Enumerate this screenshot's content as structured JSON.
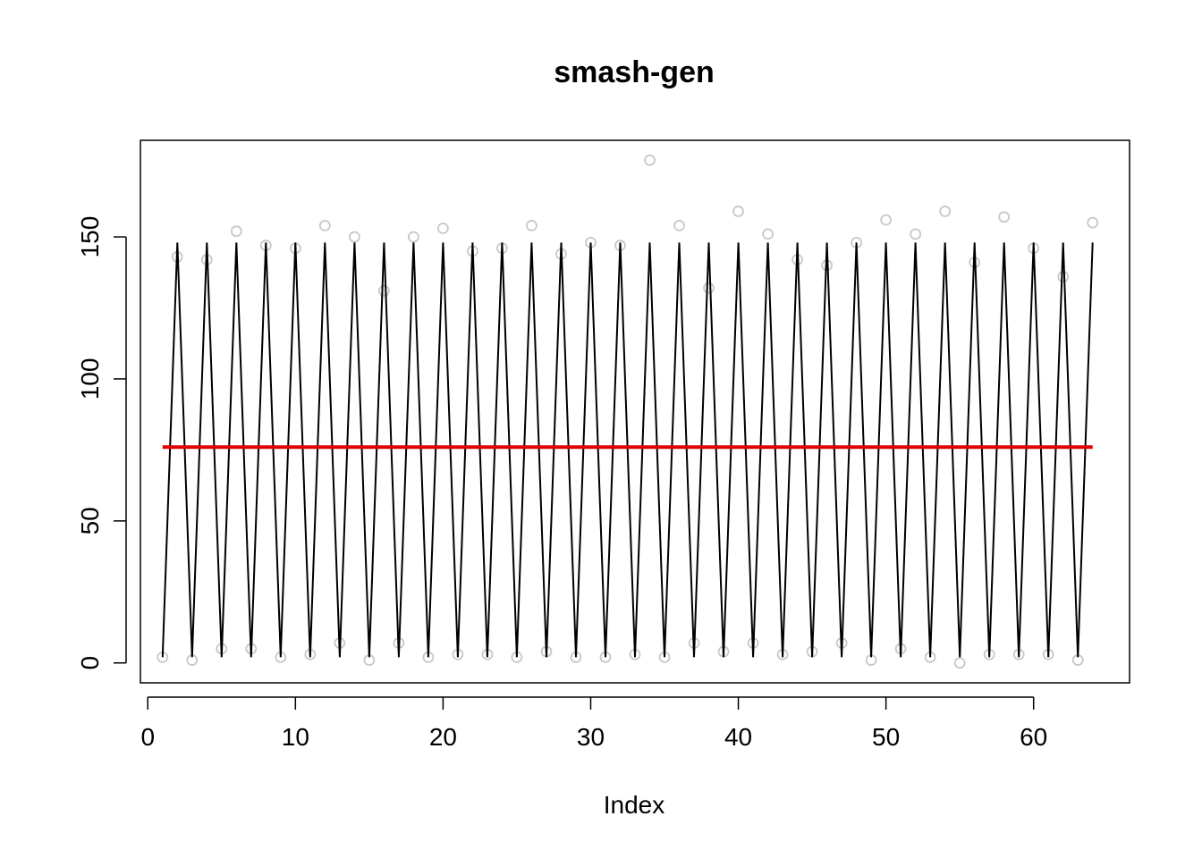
{
  "chart_data": {
    "type": "scatter",
    "title": "smash-gen",
    "xlabel": "Index",
    "ylabel": "",
    "xlim": [
      -0.5,
      66.5
    ],
    "ylim": [
      -7,
      184
    ],
    "xticks": [
      0,
      10,
      20,
      30,
      40,
      50,
      60
    ],
    "yticks": [
      0,
      50,
      100,
      150
    ],
    "grid": false,
    "legend": "none",
    "series": [
      {
        "kind": "points",
        "color": "#c8c8c8",
        "x": [
          1,
          2,
          3,
          4,
          5,
          6,
          7,
          8,
          9,
          10,
          11,
          12,
          13,
          14,
          15,
          16,
          17,
          18,
          19,
          20,
          21,
          22,
          23,
          24,
          25,
          26,
          27,
          28,
          29,
          30,
          31,
          32,
          33,
          34,
          35,
          36,
          37,
          38,
          39,
          40,
          41,
          42,
          43,
          44,
          45,
          46,
          47,
          48,
          49,
          50,
          51,
          52,
          53,
          54,
          55,
          56,
          57,
          58,
          59,
          60,
          61,
          62,
          63,
          64
        ],
        "y": [
          2,
          143,
          1,
          142,
          5,
          152,
          5,
          147,
          2,
          146,
          3,
          154,
          7,
          150,
          1,
          131,
          7,
          150,
          2,
          153,
          3,
          145,
          3,
          146,
          2,
          154,
          4,
          144,
          2,
          148,
          2,
          147,
          3,
          177,
          2,
          154,
          7,
          132,
          4,
          159,
          7,
          151,
          3,
          142,
          4,
          140,
          7,
          148,
          1,
          156,
          5,
          151,
          2,
          159,
          0,
          141,
          3,
          157,
          3,
          146,
          3,
          136,
          1,
          155
        ]
      },
      {
        "kind": "line",
        "color": "#000000",
        "x": [
          1,
          2,
          3,
          4,
          5,
          6,
          7,
          8,
          9,
          10,
          11,
          12,
          13,
          14,
          15,
          16,
          17,
          18,
          19,
          20,
          21,
          22,
          23,
          24,
          25,
          26,
          27,
          28,
          29,
          30,
          31,
          32,
          33,
          34,
          35,
          36,
          37,
          38,
          39,
          40,
          41,
          42,
          43,
          44,
          45,
          46,
          47,
          48,
          49,
          50,
          51,
          52,
          53,
          54,
          55,
          56,
          57,
          58,
          59,
          60,
          61,
          62,
          63,
          64
        ],
        "y": [
          2,
          148,
          2,
          148,
          2,
          148,
          2,
          148,
          2,
          148,
          2,
          148,
          2,
          148,
          2,
          148,
          2,
          148,
          2,
          148,
          2,
          148,
          2,
          148,
          2,
          148,
          2,
          148,
          2,
          148,
          2,
          148,
          2,
          148,
          2,
          148,
          2,
          148,
          2,
          148,
          2,
          148,
          2,
          148,
          2,
          148,
          2,
          148,
          2,
          148,
          2,
          148,
          2,
          148,
          2,
          148,
          2,
          148,
          2,
          148,
          2,
          148,
          2,
          148
        ]
      },
      {
        "kind": "line",
        "color": "#e00000",
        "x": [
          1,
          64
        ],
        "y": [
          76,
          76
        ]
      }
    ]
  }
}
